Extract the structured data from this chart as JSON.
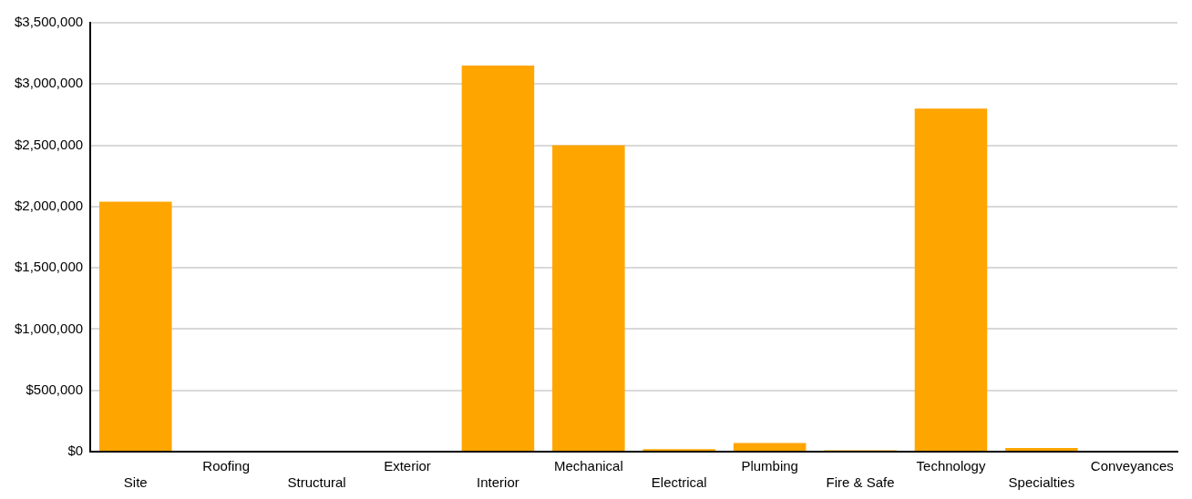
{
  "chart_data": {
    "type": "bar",
    "categories": [
      "Site",
      "Roofing",
      "Structural",
      "Exterior",
      "Interior",
      "Mechanical",
      "Electrical",
      "Plumbing",
      "Fire & Safe",
      "Technology",
      "Specialties",
      "Conveyances"
    ],
    "values": [
      2040000,
      0,
      0,
      0,
      3150000,
      2500000,
      20000,
      70000,
      12000,
      2800000,
      30000,
      0
    ],
    "color": "#ffa500",
    "ylim": [
      0,
      3500000
    ],
    "yticks": [
      {
        "value": 0,
        "label": "$0"
      },
      {
        "value": 500000,
        "label": "$500,000"
      },
      {
        "value": 1000000,
        "label": "$1,000,000"
      },
      {
        "value": 1500000,
        "label": "$1,500,000"
      },
      {
        "value": 2000000,
        "label": "$2,000,000"
      },
      {
        "value": 2500000,
        "label": "$2,500,000"
      },
      {
        "value": 3000000,
        "label": "$3,000,000"
      },
      {
        "value": 3500000,
        "label": "$3,500,000"
      }
    ],
    "grid": "y",
    "legend": false
  }
}
